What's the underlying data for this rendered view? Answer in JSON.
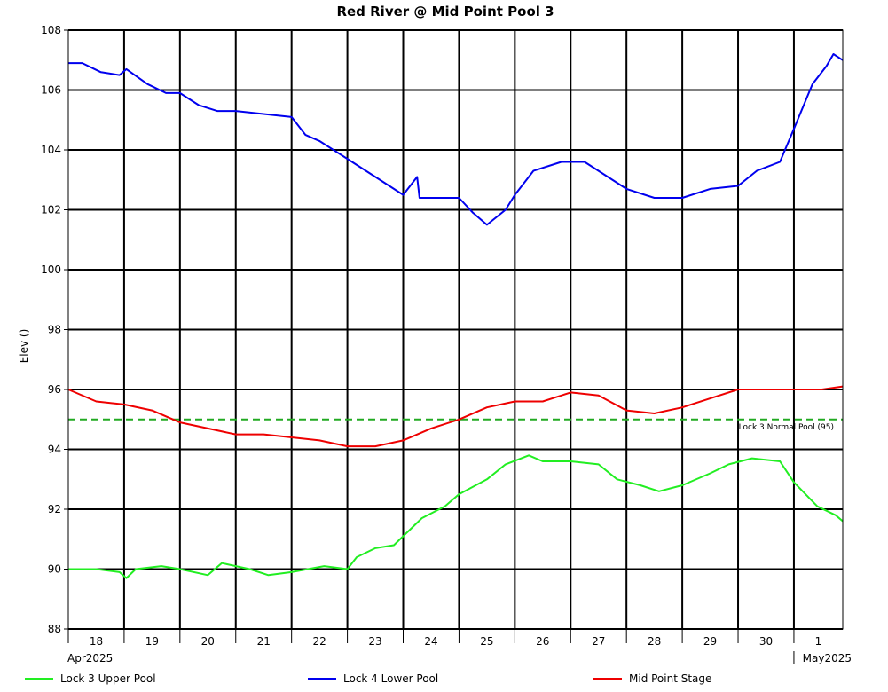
{
  "chart_data": {
    "type": "line",
    "title": "Red River @ Mid Point Pool 3",
    "ylabel": "Elev ()",
    "xlabel": "",
    "ylim": [
      88,
      108
    ],
    "yticks": [
      "88",
      "90",
      "92",
      "94",
      "96",
      "98",
      "100",
      "102",
      "104",
      "106",
      "108"
    ],
    "grid": true,
    "legend_position": "bottom",
    "x_start": "2025-04-18",
    "x_end": "2025-05-01T21:00",
    "x_day_labels": [
      {
        "date": "2025-04-18",
        "label": "18"
      },
      {
        "date": "2025-04-19",
        "label": "19"
      },
      {
        "date": "2025-04-20",
        "label": "20"
      },
      {
        "date": "2025-04-21",
        "label": "21"
      },
      {
        "date": "2025-04-22",
        "label": "22"
      },
      {
        "date": "2025-04-23",
        "label": "23"
      },
      {
        "date": "2025-04-24",
        "label": "24"
      },
      {
        "date": "2025-04-25",
        "label": "25"
      },
      {
        "date": "2025-04-26",
        "label": "26"
      },
      {
        "date": "2025-04-27",
        "label": "27"
      },
      {
        "date": "2025-04-28",
        "label": "28"
      },
      {
        "date": "2025-04-29",
        "label": "29"
      },
      {
        "date": "2025-04-30",
        "label": "30"
      },
      {
        "date": "2025-05-01",
        "label": "1"
      }
    ],
    "month_labels": [
      {
        "date": "2025-04-18",
        "label": "Apr2025",
        "anchor": "start"
      },
      {
        "date": "2025-05-01",
        "label": "May2025",
        "anchor": "end"
      }
    ],
    "reference_lines": [
      {
        "y": 95,
        "label": "Lock 3 Normal Pool (95)",
        "color": "#22aa22",
        "style": "dashed"
      }
    ],
    "series": [
      {
        "name": "Lock 3 Upper Pool",
        "color": "#22ee22",
        "points": [
          [
            "2025-04-18T00:00",
            90.0
          ],
          [
            "2025-04-18T12:00",
            90.0
          ],
          [
            "2025-04-18T22:00",
            89.9
          ],
          [
            "2025-04-19T01:00",
            89.7
          ],
          [
            "2025-04-19T05:00",
            90.0
          ],
          [
            "2025-04-19T16:00",
            90.1
          ],
          [
            "2025-04-20T00:00",
            90.0
          ],
          [
            "2025-04-20T12:00",
            89.8
          ],
          [
            "2025-04-20T18:00",
            90.2
          ],
          [
            "2025-04-21T06:00",
            90.0
          ],
          [
            "2025-04-21T14:00",
            89.8
          ],
          [
            "2025-04-22T00:00",
            89.9
          ],
          [
            "2025-04-22T14:00",
            90.1
          ],
          [
            "2025-04-23T00:00",
            90.0
          ],
          [
            "2025-04-23T04:00",
            90.4
          ],
          [
            "2025-04-23T12:00",
            90.7
          ],
          [
            "2025-04-23T20:00",
            90.8
          ],
          [
            "2025-04-24T00:00",
            91.1
          ],
          [
            "2025-04-24T08:00",
            91.7
          ],
          [
            "2025-04-24T18:00",
            92.1
          ],
          [
            "2025-04-25T00:00",
            92.5
          ],
          [
            "2025-04-25T12:00",
            93.0
          ],
          [
            "2025-04-25T20:00",
            93.5
          ],
          [
            "2025-04-26T06:00",
            93.8
          ],
          [
            "2025-04-26T12:00",
            93.6
          ],
          [
            "2025-04-27T00:00",
            93.6
          ],
          [
            "2025-04-27T12:00",
            93.5
          ],
          [
            "2025-04-27T20:00",
            93.0
          ],
          [
            "2025-04-28T06:00",
            92.8
          ],
          [
            "2025-04-28T14:00",
            92.6
          ],
          [
            "2025-04-29T00:00",
            92.8
          ],
          [
            "2025-04-29T12:00",
            93.2
          ],
          [
            "2025-04-29T20:00",
            93.5
          ],
          [
            "2025-04-30T06:00",
            93.7
          ],
          [
            "2025-04-30T18:00",
            93.6
          ],
          [
            "2025-05-01T00:00",
            92.9
          ],
          [
            "2025-05-01T10:00",
            92.1
          ],
          [
            "2025-05-01T18:00",
            91.8
          ],
          [
            "2025-05-01T21:00",
            91.6
          ]
        ]
      },
      {
        "name": "Lock 4 Lower Pool",
        "color": "#0000ee",
        "points": [
          [
            "2025-04-18T00:00",
            106.9
          ],
          [
            "2025-04-18T06:00",
            106.9
          ],
          [
            "2025-04-18T14:00",
            106.6
          ],
          [
            "2025-04-18T22:00",
            106.5
          ],
          [
            "2025-04-19T01:00",
            106.7
          ],
          [
            "2025-04-19T10:00",
            106.2
          ],
          [
            "2025-04-19T18:00",
            105.9
          ],
          [
            "2025-04-20T00:00",
            105.9
          ],
          [
            "2025-04-20T08:00",
            105.5
          ],
          [
            "2025-04-20T16:00",
            105.3
          ],
          [
            "2025-04-21T00:00",
            105.3
          ],
          [
            "2025-04-21T12:00",
            105.2
          ],
          [
            "2025-04-22T00:00",
            105.1
          ],
          [
            "2025-04-22T06:00",
            104.5
          ],
          [
            "2025-04-22T12:00",
            104.3
          ],
          [
            "2025-04-23T00:00",
            103.7
          ],
          [
            "2025-04-23T12:00",
            103.1
          ],
          [
            "2025-04-24T00:00",
            102.5
          ],
          [
            "2025-04-24T06:00",
            103.1
          ],
          [
            "2025-04-24T07:00",
            102.4
          ],
          [
            "2025-04-24T20:00",
            102.4
          ],
          [
            "2025-04-25T00:00",
            102.4
          ],
          [
            "2025-04-25T06:00",
            101.9
          ],
          [
            "2025-04-25T12:00",
            101.5
          ],
          [
            "2025-04-25T20:00",
            102.0
          ],
          [
            "2025-04-26T00:00",
            102.5
          ],
          [
            "2025-04-26T08:00",
            103.3
          ],
          [
            "2025-04-26T20:00",
            103.6
          ],
          [
            "2025-04-27T06:00",
            103.6
          ],
          [
            "2025-04-27T16:00",
            103.1
          ],
          [
            "2025-04-28T00:00",
            102.7
          ],
          [
            "2025-04-28T12:00",
            102.4
          ],
          [
            "2025-04-29T00:00",
            102.4
          ],
          [
            "2025-04-29T12:00",
            102.7
          ],
          [
            "2025-04-30T00:00",
            102.8
          ],
          [
            "2025-04-30T08:00",
            103.3
          ],
          [
            "2025-04-30T18:00",
            103.6
          ],
          [
            "2025-05-01T00:00",
            104.7
          ],
          [
            "2025-05-01T08:00",
            106.2
          ],
          [
            "2025-05-01T14:00",
            106.8
          ],
          [
            "2025-05-01T17:00",
            107.2
          ],
          [
            "2025-05-01T21:00",
            107.0
          ]
        ]
      },
      {
        "name": "Mid Point Stage",
        "color": "#ee0000",
        "points": [
          [
            "2025-04-18T00:00",
            96.0
          ],
          [
            "2025-04-18T12:00",
            95.6
          ],
          [
            "2025-04-19T00:00",
            95.5
          ],
          [
            "2025-04-19T12:00",
            95.3
          ],
          [
            "2025-04-20T00:00",
            94.9
          ],
          [
            "2025-04-20T12:00",
            94.7
          ],
          [
            "2025-04-21T00:00",
            94.5
          ],
          [
            "2025-04-21T12:00",
            94.5
          ],
          [
            "2025-04-22T00:00",
            94.4
          ],
          [
            "2025-04-22T12:00",
            94.3
          ],
          [
            "2025-04-23T00:00",
            94.1
          ],
          [
            "2025-04-23T12:00",
            94.1
          ],
          [
            "2025-04-24T00:00",
            94.3
          ],
          [
            "2025-04-24T12:00",
            94.7
          ],
          [
            "2025-04-25T00:00",
            95.0
          ],
          [
            "2025-04-25T12:00",
            95.4
          ],
          [
            "2025-04-26T00:00",
            95.6
          ],
          [
            "2025-04-26T12:00",
            95.6
          ],
          [
            "2025-04-27T00:00",
            95.9
          ],
          [
            "2025-04-27T12:00",
            95.8
          ],
          [
            "2025-04-28T00:00",
            95.3
          ],
          [
            "2025-04-28T12:00",
            95.2
          ],
          [
            "2025-04-29T00:00",
            95.4
          ],
          [
            "2025-04-29T12:00",
            95.7
          ],
          [
            "2025-04-30T00:00",
            96.0
          ],
          [
            "2025-04-30T12:00",
            96.0
          ],
          [
            "2025-05-01T00:00",
            96.0
          ],
          [
            "2025-05-01T12:00",
            96.0
          ],
          [
            "2025-05-01T21:00",
            96.1
          ]
        ]
      }
    ]
  }
}
